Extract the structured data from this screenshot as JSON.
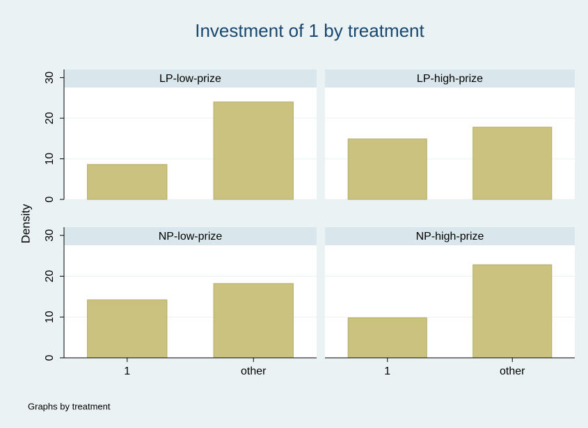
{
  "title": "Investment of 1 by treatment",
  "y_label": "Density",
  "note": "Graphs by treatment",
  "categories": [
    "1",
    "other"
  ],
  "ylim": [
    0,
    32
  ],
  "yticks": [
    0,
    10,
    20,
    30
  ],
  "color": "#cac27e",
  "chart_data": [
    {
      "type": "bar",
      "title": "LP-low-prize",
      "values": [
        8.6,
        24.0
      ]
    },
    {
      "type": "bar",
      "title": "LP-high-prize",
      "values": [
        14.9,
        17.8
      ]
    },
    {
      "type": "bar",
      "title": "NP-low-prize",
      "values": [
        14.2,
        18.2
      ]
    },
    {
      "type": "bar",
      "title": "NP-high-prize",
      "values": [
        9.8,
        22.8
      ]
    }
  ]
}
